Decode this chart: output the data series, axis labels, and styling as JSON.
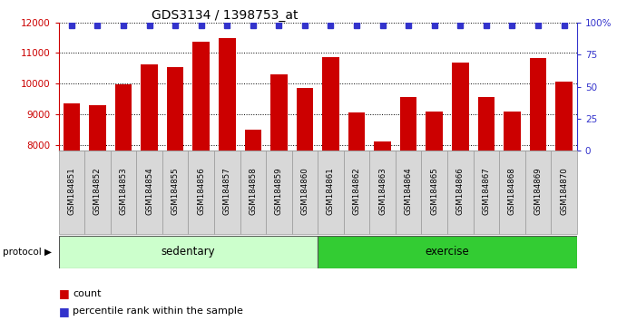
{
  "title": "GDS3134 / 1398753_at",
  "samples": [
    "GSM184851",
    "GSM184852",
    "GSM184853",
    "GSM184854",
    "GSM184855",
    "GSM184856",
    "GSM184857",
    "GSM184858",
    "GSM184859",
    "GSM184860",
    "GSM184861",
    "GSM184862",
    "GSM184863",
    "GSM184864",
    "GSM184865",
    "GSM184866",
    "GSM184867",
    "GSM184868",
    "GSM184869",
    "GSM184870"
  ],
  "counts": [
    9350,
    9280,
    9980,
    10620,
    10540,
    11380,
    11490,
    8480,
    10300,
    9870,
    10870,
    9070,
    8110,
    9560,
    9090,
    10700,
    9570,
    9090,
    10840,
    10070
  ],
  "percentile_ranks": [
    100,
    100,
    100,
    100,
    100,
    100,
    100,
    100,
    100,
    100,
    100,
    100,
    100,
    100,
    100,
    100,
    100,
    100,
    100,
    100
  ],
  "bar_color": "#cc0000",
  "percentile_color": "#3333cc",
  "groups": [
    {
      "label": "sedentary",
      "start": 0,
      "end": 10,
      "color": "#ccffcc"
    },
    {
      "label": "exercise",
      "start": 10,
      "end": 20,
      "color": "#33cc33"
    }
  ],
  "ylim_left": [
    7800,
    12000
  ],
  "ylim_right": [
    0,
    100
  ],
  "yticks_left": [
    8000,
    9000,
    10000,
    11000,
    12000
  ],
  "yticks_right": [
    0,
    25,
    50,
    75,
    100
  ],
  "ytick_labels_right": [
    "0",
    "25",
    "50",
    "75",
    "100%"
  ],
  "bg_color": "#ffffff",
  "protocol_label": "protocol",
  "legend_count_label": "count",
  "legend_percentile_label": "percentile rank within the sample",
  "sample_box_color": "#d8d8d8",
  "sample_box_edge": "#999999"
}
